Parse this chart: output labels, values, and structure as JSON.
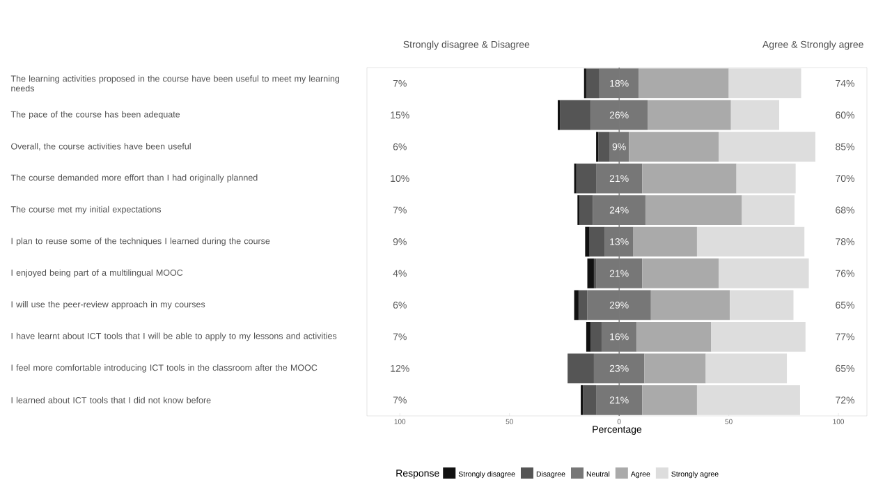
{
  "chart_data": {
    "type": "bar",
    "orientation": "horizontal",
    "stacked": true,
    "xlabel": "Percentage",
    "legend_title": "Response",
    "legend": "bottom",
    "categories": [
      "The learning activities proposed in the course have been useful to meet my learning needs",
      "The pace of the course has been adequate",
      "Overall, the course activities have been useful",
      "The course demanded more effort than I had originally planned",
      "The course met my initial expectations",
      "I plan to reuse some of the techniques I learned during the course",
      "I enjoyed being part of a multilingual MOOC",
      "I will use the peer-review approach in my courses",
      "I have learnt about ICT tools that I will be able to apply to my lessons and activities",
      "I feel more comfortable introducing ICT tools in the classroom after the MOOC",
      "I learned about ICT tools that I did not know before"
    ],
    "series": [
      {
        "color": "#777777",
        "values": [
          -9,
          -13,
          -4.5,
          -10.5,
          -12,
          -6.5,
          -10.5,
          -14.5,
          -8,
          -11.5,
          -10.5
        ]
      },
      {
        "name": "Disagree",
        "color": "#555555",
        "values": [
          -6,
          -14,
          -5,
          -9,
          -6,
          -7,
          -1,
          -4,
          -5,
          -12,
          -6
        ]
      },
      {
        "name": "Strongly disagree",
        "color": "#111111",
        "values": [
          -1,
          -1,
          -1,
          -1,
          -1,
          -2,
          -3,
          -2,
          -2,
          0,
          -1
        ]
      },
      {
        "name": "Neutral",
        "color": "#777777",
        "values": [
          9,
          13,
          4.5,
          10.5,
          12,
          6.5,
          10.5,
          14.5,
          8,
          11.5,
          10.5
        ]
      },
      {
        "name": "Agree",
        "color": "#aaaaaa",
        "values": [
          41,
          38,
          41,
          43,
          44,
          29,
          35,
          36,
          34,
          28,
          25
        ]
      },
      {
        "name": "Strongly agree",
        "color": "#dddddd",
        "values": [
          33,
          22,
          44,
          27,
          24,
          49,
          41,
          29,
          43,
          37,
          47
        ]
      }
    ],
    "xlim": [
      -115,
      113
    ],
    "xticks": [
      {
        "value": -100,
        "label": "100"
      },
      {
        "value": -50,
        "label": "50"
      },
      0,
      50,
      100
    ],
    "ref_lines": [
      {
        "axis": "x",
        "value": 0,
        "color": "#444444"
      }
    ],
    "annotations": [
      "Strongly disagree & Disagree",
      "Agree & Strongly agree",
      "7%",
      "15%",
      "6%",
      "10%",
      "7%",
      "9%",
      "4%",
      "6%",
      "7%",
      "12%",
      "7%",
      "74%",
      "60%",
      "85%",
      "70%",
      "68%",
      "78%",
      "76%",
      "65%",
      "77%",
      "65%",
      "72%",
      "18%",
      "26%",
      "9%",
      "21%",
      "24%",
      "13%",
      "21%",
      "29%",
      "16%",
      "23%",
      "21%"
    ]
  }
}
